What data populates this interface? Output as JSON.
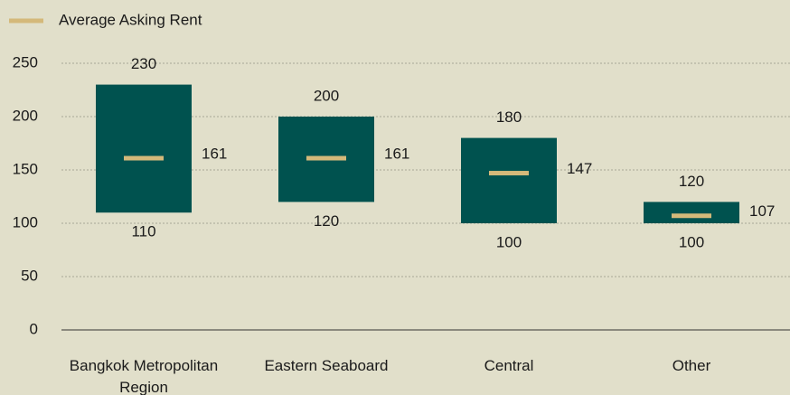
{
  "chart_data": {
    "type": "range",
    "categories": [
      "Bangkok Metropolitan Region",
      "Eastern Seaboard",
      "Central",
      "Other"
    ],
    "ranges": {
      "color": "#00524f",
      "low": [
        110,
        120,
        100,
        100
      ],
      "high": [
        230,
        200,
        180,
        120
      ]
    },
    "series": [
      {
        "name": "Average Asking Rent",
        "color": "#d4b97a",
        "values": [
          161,
          161,
          147,
          107
        ]
      }
    ],
    "ylim": [
      0,
      250
    ],
    "yticks": [
      0,
      50,
      100,
      150,
      200,
      250
    ],
    "grid": true,
    "legend": "top-left"
  }
}
